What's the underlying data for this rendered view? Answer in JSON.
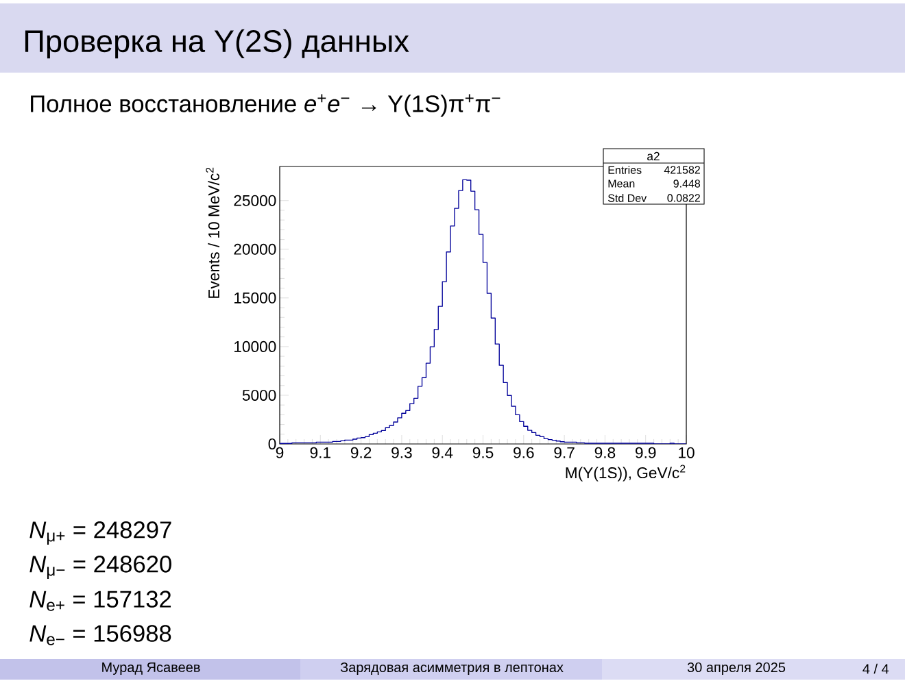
{
  "chart_data": {
    "type": "histogram",
    "title": "Проверка на Υ(2S) данных",
    "subtitle": "Полное восстановление *e*$^{+}$*e*$^{−}$ → Υ(1S)π$^{+}$π$^{−}$",
    "xlabel": "M(Υ(1S)), GeV/c$^{2}$",
    "ylabel": "Events / 10 MeV/c$^{2}$",
    "color": "#000099",
    "bins": [
      9.0,
      9.01,
      9.02,
      9.03,
      9.04,
      9.05,
      9.06,
      9.07,
      9.08,
      9.09,
      9.1,
      9.11,
      9.12,
      9.13,
      9.14,
      9.15,
      9.16,
      9.17,
      9.18,
      9.19,
      9.2,
      9.21,
      9.22,
      9.23,
      9.24,
      9.25,
      9.26,
      9.27,
      9.28,
      9.29,
      9.3,
      9.31,
      9.32,
      9.33,
      9.34,
      9.35,
      9.36,
      9.37,
      9.38,
      9.39,
      9.4,
      9.41,
      9.42,
      9.43,
      9.44,
      9.45,
      9.46,
      9.47,
      9.48,
      9.49,
      9.5,
      9.51,
      9.52,
      9.53,
      9.54,
      9.55,
      9.56,
      9.57,
      9.58,
      9.59,
      9.6,
      9.61,
      9.62,
      9.63,
      9.64,
      9.65,
      9.66,
      9.67,
      9.68,
      9.69,
      9.7,
      9.71,
      9.72,
      9.73,
      9.74,
      9.75,
      9.76,
      9.77,
      9.78,
      9.79,
      9.8,
      9.81,
      9.82,
      9.83,
      9.84,
      9.85,
      9.86,
      9.87,
      9.88,
      9.89,
      9.9,
      9.91,
      9.92,
      9.93,
      9.94,
      9.95,
      9.96,
      9.97,
      9.98,
      9.99,
      10.0
    ],
    "values": [
      50,
      50,
      50,
      120,
      120,
      120,
      120,
      120,
      120,
      190,
      190,
      190,
      190,
      260,
      260,
      320,
      400,
      400,
      490,
      610,
      650,
      750,
      960,
      1100,
      1240,
      1380,
      1670,
      1900,
      2250,
      2680,
      3150,
      3430,
      4140,
      4690,
      5920,
      6810,
      8290,
      9980,
      11760,
      14130,
      16670,
      19720,
      22390,
      24200,
      26030,
      27140,
      27090,
      25960,
      24060,
      21530,
      18640,
      15470,
      12930,
      10260,
      8080,
      6310,
      4980,
      3870,
      3000,
      2300,
      1810,
      1400,
      1170,
      890,
      750,
      540,
      450,
      380,
      300,
      230,
      190,
      190,
      190,
      120,
      120,
      70,
      70,
      70,
      70,
      70,
      70,
      70,
      70,
      70,
      70,
      70,
      70,
      70,
      70,
      70,
      70,
      70,
      0,
      0,
      0,
      0,
      70,
      0,
      0,
      0
    ],
    "xlim": [
      9,
      10
    ],
    "ylim": [
      0,
      28500
    ],
    "xticks": [
      9,
      9.1,
      9.2,
      9.3,
      9.4,
      9.5,
      9.6,
      9.7,
      9.8,
      9.9,
      10
    ],
    "yticks": [
      0,
      5000,
      10000,
      15000,
      20000,
      25000
    ],
    "annotations": [
      "a2",
      "Entries",
      "421582",
      "Mean",
      "9.448",
      "Std Dev",
      "0.0822",
      "*N*$_{μ+}$ = 248297",
      "*N*$_{μ−}$ = 248620",
      "*N*$_{e+}$ = 157132",
      "*N*$_{e−}$ = 156988",
      "Мурад Ясавеев",
      "Зарядовая асимметрия в лептонах",
      "30 апреля 2025",
      "4 / 4"
    ]
  }
}
